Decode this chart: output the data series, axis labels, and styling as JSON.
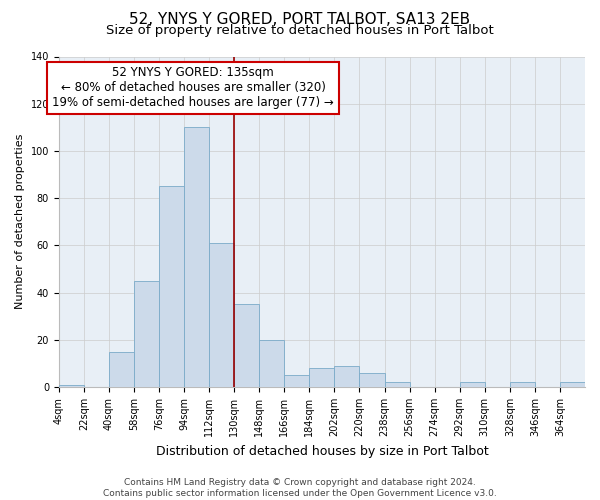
{
  "title": "52, YNYS Y GORED, PORT TALBOT, SA13 2EB",
  "subtitle": "Size of property relative to detached houses in Port Talbot",
  "xlabel": "Distribution of detached houses by size in Port Talbot",
  "ylabel": "Number of detached properties",
  "bin_labels": [
    "4sqm",
    "22sqm",
    "40sqm",
    "58sqm",
    "76sqm",
    "94sqm",
    "112sqm",
    "130sqm",
    "148sqm",
    "166sqm",
    "184sqm",
    "202sqm",
    "220sqm",
    "238sqm",
    "256sqm",
    "274sqm",
    "292sqm",
    "310sqm",
    "328sqm",
    "346sqm",
    "364sqm"
  ],
  "bar_values": [
    1,
    0,
    15,
    45,
    85,
    110,
    61,
    35,
    20,
    5,
    8,
    9,
    6,
    2,
    0,
    0,
    2,
    0,
    2,
    0,
    2
  ],
  "bar_color": "#ccdaea",
  "bar_edge_color": "#7aaac8",
  "plot_bg_color": "#e8eff6",
  "property_line_x": 130,
  "property_line_color": "#990000",
  "ylim": [
    0,
    140
  ],
  "annotation_title": "52 YNYS Y GORED: 135sqm",
  "annotation_line1": "← 80% of detached houses are smaller (320)",
  "annotation_line2": "19% of semi-detached houses are larger (77) →",
  "annotation_box_facecolor": "#ffffff",
  "annotation_box_edgecolor": "#cc0000",
  "grid_color": "#cccccc",
  "footer_line1": "Contains HM Land Registry data © Crown copyright and database right 2024.",
  "footer_line2": "Contains public sector information licensed under the Open Government Licence v3.0.",
  "title_fontsize": 11,
  "subtitle_fontsize": 9.5,
  "xlabel_fontsize": 9,
  "ylabel_fontsize": 8,
  "tick_fontsize": 7,
  "annot_fontsize": 8.5,
  "footer_fontsize": 6.5
}
